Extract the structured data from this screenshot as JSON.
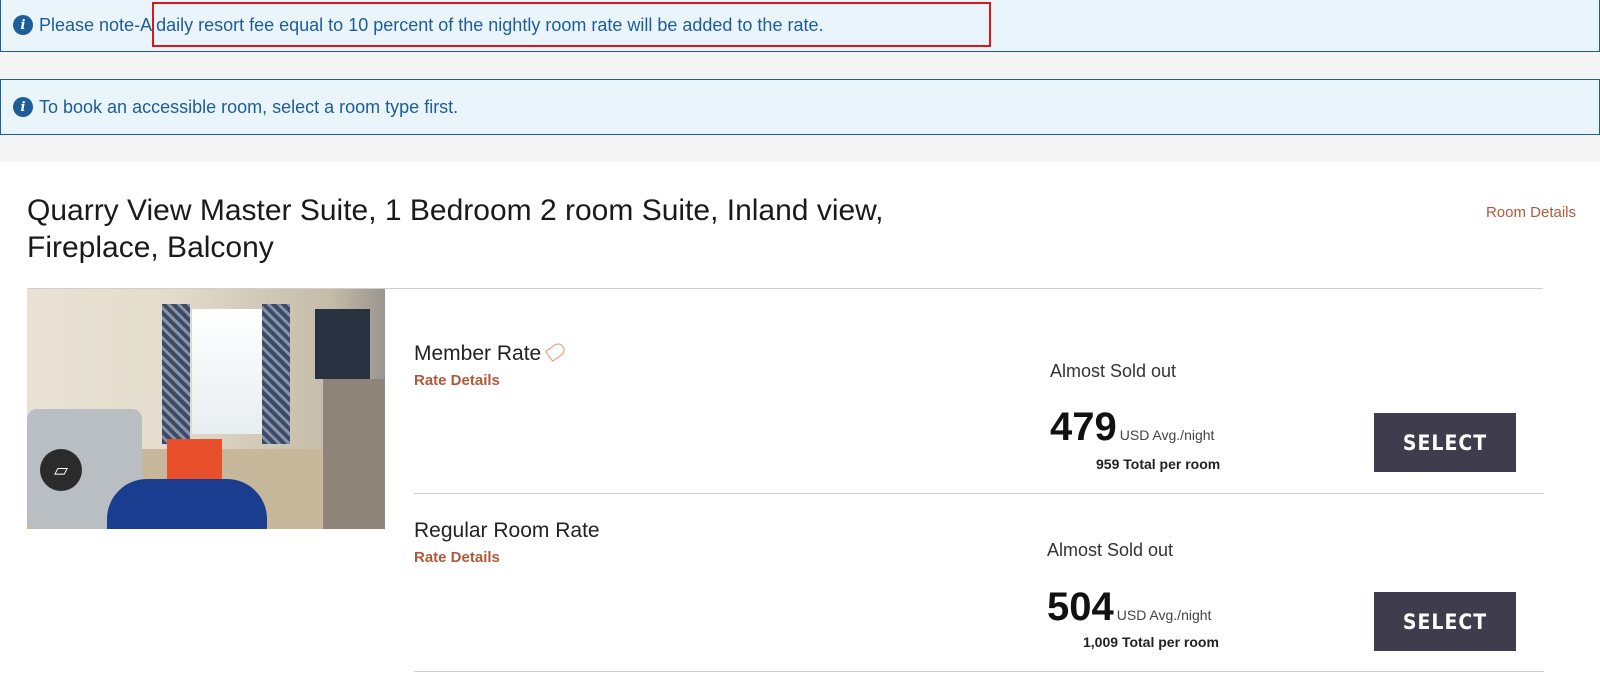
{
  "notices": [
    {
      "icon": "info-icon",
      "text": "Please note-A daily resort fee equal to 10 percent of the nightly room rate will be added to the rate."
    },
    {
      "icon": "info-icon",
      "text": "To book an accessible room, select a room type first."
    }
  ],
  "highlight_color": "#e1141c",
  "room": {
    "title": "Quarry View Master Suite, 1 Bedroom 2 room Suite, Inland view, Fireplace, Balcony",
    "details_link": "Room Details",
    "gallery_icon": "gallery-icon",
    "rates": [
      {
        "name": "Member Rate",
        "badge_icon": "tag-icon",
        "details": "Rate Details",
        "availability": "Almost Sold out",
        "price": "479",
        "price_unit": "USD Avg./night",
        "total": "959",
        "total_label": "Total per room",
        "button": "SELECT"
      },
      {
        "name": "Regular Room Rate",
        "details": "Rate Details",
        "availability": "Almost Sold out",
        "price": "504",
        "price_unit": "USD Avg./night",
        "total": "1,009",
        "total_label": "Total per room",
        "button": "SELECT"
      }
    ]
  },
  "colors": {
    "info": "#1d5d98",
    "link": "#b05a3c",
    "button": "#3f3c4e"
  }
}
